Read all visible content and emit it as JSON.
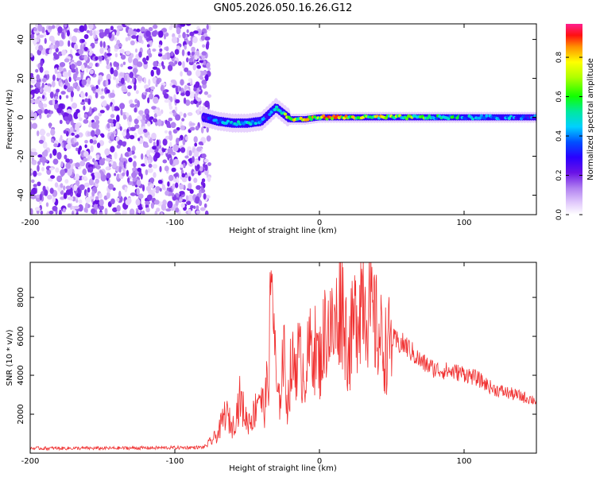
{
  "chart_data": [
    {
      "type": "heatmap",
      "title": "GN05.2026.050.16.26.G12",
      "xlabel": "Height of straight line (km)",
      "ylabel": "Frequency (Hz)",
      "xlim": [
        -200,
        150
      ],
      "ylim": [
        -50,
        48
      ],
      "x_ticks": [
        "-200",
        "-100",
        "0",
        "100"
      ],
      "x_tick_values": [
        -200,
        -100,
        0,
        100
      ],
      "y_ticks": [
        "40",
        "20",
        "0",
        "-20",
        "-40"
      ],
      "y_tick_values": [
        40,
        20,
        0,
        -20,
        -40
      ],
      "noise_region_x": [
        -200,
        -76
      ],
      "signal_band": {
        "x": [
          -80,
          -70,
          -60,
          -50,
          -40,
          -30,
          -20,
          -10,
          0,
          20,
          50,
          100,
          150
        ],
        "center_hz": [
          0,
          -2,
          -3,
          -3,
          -2,
          5,
          -1,
          -1,
          0,
          0,
          0,
          0,
          0
        ],
        "peak_amplitude": [
          0.35,
          0.55,
          0.6,
          0.55,
          0.5,
          0.5,
          0.85,
          0.9,
          0.95,
          0.9,
          0.8,
          0.6,
          0.45
        ]
      },
      "colorbar": {
        "label": "Normalized spectral amplitude",
        "range": [
          0,
          0.97
        ],
        "ticks": [
          "0.0",
          "0.2",
          "0.4",
          "0.6",
          "0.8"
        ],
        "tick_values": [
          0,
          0.2,
          0.4,
          0.6,
          0.8
        ],
        "colors": [
          "#ffffff",
          "#e3ccfc",
          "#b07ff0",
          "#6a12e6",
          "#2a00ff",
          "#0050ff",
          "#00d0ff",
          "#00e8a0",
          "#10ff00",
          "#b0ff00",
          "#ffff00",
          "#ff9000",
          "#ff1010",
          "#ff2090"
        ]
      }
    },
    {
      "type": "line",
      "xlabel": "Height of straight line (km)",
      "ylabel": "SNR (10 * v/v)",
      "xlim": [
        -200,
        150
      ],
      "ylim": [
        0,
        9800
      ],
      "x_ticks": [
        "-200",
        "-100",
        "0",
        "100"
      ],
      "x_tick_values": [
        -200,
        -100,
        0,
        100
      ],
      "y_ticks": [
        "8000",
        "6000",
        "4000",
        "2000"
      ],
      "y_tick_values": [
        8000,
        6000,
        4000,
        2000
      ],
      "series": [
        {
          "name": "SNR",
          "color": "#f03030",
          "x": [
            -200,
            -150,
            -100,
            -80,
            -75,
            -70,
            -65,
            -60,
            -55,
            -50,
            -45,
            -42,
            -40,
            -38,
            -35,
            -33,
            -30,
            -28,
            -25,
            -22,
            -20,
            -15,
            -10,
            -5,
            0,
            5,
            10,
            15,
            20,
            25,
            30,
            35,
            40,
            45,
            50,
            60,
            70,
            80,
            90,
            100,
            110,
            120,
            130,
            140,
            150
          ],
          "y": [
            250,
            250,
            280,
            300,
            600,
            1000,
            2100,
            1300,
            2800,
            1600,
            2000,
            3300,
            2600,
            2300,
            4300,
            9700,
            3500,
            2300,
            5300,
            2400,
            4200,
            5000,
            4100,
            5800,
            4600,
            6700,
            6100,
            8200,
            5200,
            7000,
            8600,
            7200,
            6300,
            5300,
            5800,
            5500,
            4700,
            4300,
            4200,
            4100,
            3800,
            3300,
            3100,
            2900,
            2700
          ]
        }
      ]
    }
  ]
}
